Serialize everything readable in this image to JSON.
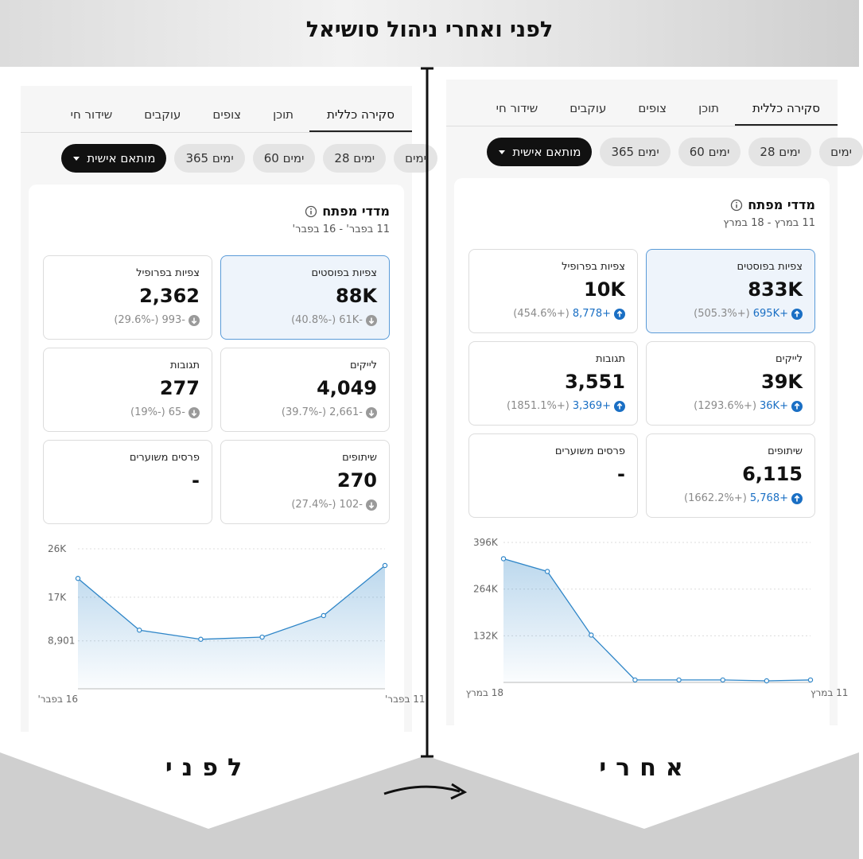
{
  "title": "לפני ואחרי ניהול סושיאל",
  "panels": [
    {
      "caption": "לפני",
      "tabs": [
        "סקירה כללית",
        "תוכן",
        "צופים",
        "עוקבים",
        "שידור חי"
      ],
      "chips": [
        "ימים",
        "28 ימים",
        "60 ימים",
        "365 ימים",
        "מותאם אישית"
      ],
      "card": {
        "title": "מדדי מפתח",
        "date_range": "11 בפבר' - 16 בפבר'",
        "metrics": [
          {
            "label": "צפיות בפוסטים",
            "value": "88K",
            "delta": "-61K",
            "pct": "(-40.8%)",
            "trend": "down"
          },
          {
            "label": "צפיות בפרופיל",
            "value": "2,362",
            "delta": "-993",
            "pct": "(-29.6%)",
            "trend": "down"
          },
          {
            "label": "לייקים",
            "value": "4,049",
            "delta": "-2,661",
            "pct": "(-39.7%)",
            "trend": "down"
          },
          {
            "label": "תגובות",
            "value": "277",
            "delta": "-65",
            "pct": "(-19%)",
            "trend": "down"
          },
          {
            "label": "שיתופים",
            "value": "270",
            "delta": "-102",
            "pct": "(-27.4%)",
            "trend": "down"
          },
          {
            "label": "פרסים משוערים",
            "value": "-"
          }
        ],
        "chart": {
          "type": "line",
          "color": "#2f86c8",
          "categories": [
            "11 בפבר'",
            null,
            null,
            null,
            null,
            "16 בפבר'"
          ],
          "values": [
            22900,
            13600,
            9600,
            9200,
            10900,
            20500
          ],
          "ylim": [
            0,
            26000
          ],
          "yticks": [
            {
              "value": 26000,
              "label": "26K"
            },
            {
              "value": 17000,
              "label": "17K"
            },
            {
              "value": 8901,
              "label": "8,901"
            }
          ]
        }
      }
    },
    {
      "caption": "אחרי",
      "tabs": [
        "סקירה כללית",
        "תוכן",
        "צופים",
        "עוקבים",
        "שידור חי"
      ],
      "chips": [
        "ימים",
        "28 ימים",
        "60 ימים",
        "365 ימים",
        "מותאם אישית"
      ],
      "card": {
        "title": "מדדי מפתח",
        "date_range": "11 במרץ - 18 במרץ",
        "metrics": [
          {
            "label": "צפיות בפוסטים",
            "value": "833K",
            "delta": "+695K",
            "pct": "(+505.3%)",
            "trend": "up"
          },
          {
            "label": "צפיות בפרופיל",
            "value": "10K",
            "delta": "+8,778",
            "pct": "(+454.6%)",
            "trend": "up"
          },
          {
            "label": "לייקים",
            "value": "39K",
            "delta": "+36K",
            "pct": "(+1293.6%)",
            "trend": "up"
          },
          {
            "label": "תגובות",
            "value": "3,551",
            "delta": "+3,369",
            "pct": "(+1851.1%)",
            "trend": "up"
          },
          {
            "label": "שיתופים",
            "value": "6,115",
            "delta": "+5,768",
            "pct": "(+1662.2%)",
            "trend": "up"
          },
          {
            "label": "פרסים משוערים",
            "value": "-"
          }
        ],
        "chart": {
          "type": "line",
          "color": "#2f86c8",
          "categories": [
            "11 במרץ",
            null,
            null,
            null,
            null,
            null,
            null,
            "18 במרץ"
          ],
          "values": [
            7000,
            4500,
            7000,
            7000,
            7000,
            134000,
            314000,
            350000
          ],
          "ylim": [
            0,
            396000
          ],
          "yticks": [
            {
              "value": 396000,
              "label": "396K"
            },
            {
              "value": 264000,
              "label": "264K"
            },
            {
              "value": 132000,
              "label": "132K"
            }
          ]
        }
      }
    }
  ]
}
